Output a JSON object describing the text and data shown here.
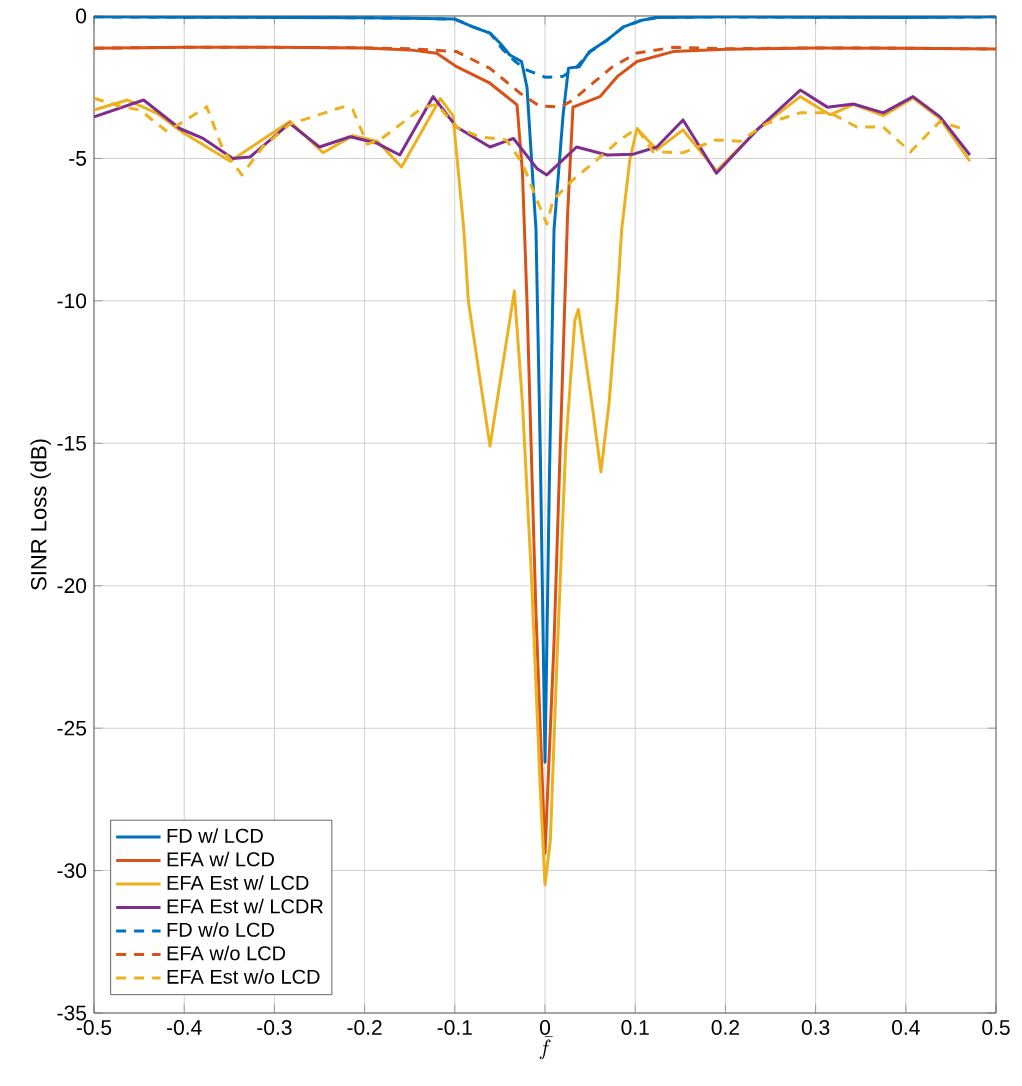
{
  "chart_data": {
    "type": "line",
    "xlabel": "\\bar{f}",
    "ylabel": "SINR Loss (dB)",
    "xlim": [
      -0.5,
      0.5
    ],
    "ylim": [
      -35,
      0
    ],
    "xticks": [
      -0.5,
      -0.4,
      -0.3,
      -0.2,
      -0.1,
      0,
      0.1,
      0.2,
      0.3,
      0.4,
      0.5
    ],
    "yticks": [
      -35,
      -30,
      -25,
      -20,
      -15,
      -10,
      -5,
      0
    ],
    "grid": true,
    "legend": "bottom left",
    "series": [
      {
        "name": "FD w/ LCD",
        "color": "#0072bd",
        "line_style": "solid",
        "x": [
          -0.5,
          -0.4,
          -0.3,
          -0.2,
          -0.15,
          -0.1,
          -0.08,
          -0.061,
          -0.05,
          -0.039,
          -0.026,
          -0.02,
          -0.01,
          -0.005,
          0,
          0.005,
          0.01,
          0.02,
          0.026,
          0.038,
          0.049,
          0.069,
          0.087,
          0.106,
          0.124,
          0.2,
          0.3,
          0.4,
          0.5
        ],
        "values": [
          -0.03,
          -0.04,
          -0.05,
          -0.06,
          -0.08,
          -0.11,
          -0.38,
          -0.6,
          -0.95,
          -1.37,
          -1.6,
          -2.5,
          -7.5,
          -15.7,
          -26.2,
          -16,
          -7.5,
          -3.5,
          -1.83,
          -1.78,
          -1.26,
          -0.84,
          -0.38,
          -0.16,
          -0.05,
          -0.03,
          -0.04,
          -0.05,
          -0.03
        ]
      },
      {
        "name": "EFA w/ LCD",
        "color": "#d95319",
        "line_style": "solid",
        "x": [
          -0.5,
          -0.4,
          -0.3,
          -0.2,
          -0.15,
          -0.12,
          -0.098,
          -0.061,
          -0.031,
          -0.025,
          -0.02,
          -0.01,
          0,
          0.01,
          0.02,
          0.025,
          0.031,
          0.061,
          0.08,
          0.102,
          0.142,
          0.2,
          0.3,
          0.4,
          0.5
        ],
        "values": [
          -1.13,
          -1.1,
          -1.1,
          -1.12,
          -1.19,
          -1.31,
          -1.78,
          -2.36,
          -3.12,
          -5.5,
          -10,
          -21,
          -29.4,
          -22,
          -12,
          -7,
          -3.2,
          -2.83,
          -2.13,
          -1.6,
          -1.25,
          -1.17,
          -1.12,
          -1.13,
          -1.16
        ]
      },
      {
        "name": "EFA Est w/ LCD",
        "color": "#edb120",
        "line_style": "solid",
        "x": [
          -0.5,
          -0.463,
          -0.43,
          -0.401,
          -0.349,
          -0.283,
          -0.246,
          -0.213,
          -0.186,
          -0.159,
          -0.116,
          -0.102,
          -0.09,
          -0.085,
          -0.061,
          -0.034,
          -0.025,
          -0.015,
          -0.005,
          0,
          0.006,
          0.013,
          0.023,
          0.033,
          0.037,
          0.052,
          0.062,
          0.071,
          0.08,
          0.085,
          0.094,
          0.102,
          0.124,
          0.153,
          0.19,
          0.235,
          0.283,
          0.316,
          0.342,
          0.375,
          0.408,
          0.438,
          0.471
        ],
        "values": [
          -3.3,
          -2.95,
          -3.42,
          -4.1,
          -5.1,
          -3.7,
          -4.8,
          -4.2,
          -4.4,
          -5.3,
          -2.9,
          -3.5,
          -7.5,
          -10,
          -15.1,
          -9.65,
          -13.6,
          -19.7,
          -27.3,
          -30.5,
          -28.9,
          -22.8,
          -15.1,
          -10.7,
          -10.3,
          -13.6,
          -16,
          -13.6,
          -10,
          -7.5,
          -5.05,
          -3.95,
          -4.7,
          -4,
          -5.44,
          -4,
          -2.83,
          -3.47,
          -3.1,
          -3.5,
          -2.88,
          -3.6,
          -5.1
        ]
      },
      {
        "name": "EFA Est w/ LCDR",
        "color": "#7e2f8e",
        "line_style": "solid",
        "x": [
          -0.5,
          -0.445,
          -0.405,
          -0.379,
          -0.346,
          -0.327,
          -0.283,
          -0.25,
          -0.216,
          -0.186,
          -0.161,
          -0.124,
          -0.098,
          -0.061,
          -0.035,
          -0.009,
          0.002,
          0.035,
          0.069,
          0.098,
          0.124,
          0.153,
          0.19,
          0.235,
          0.283,
          0.313,
          0.342,
          0.375,
          0.408,
          0.438,
          0.471
        ],
        "values": [
          -3.54,
          -2.95,
          -3.95,
          -4.3,
          -5,
          -4.95,
          -3.77,
          -4.6,
          -4.24,
          -4.47,
          -4.88,
          -2.83,
          -3.9,
          -4.6,
          -4.3,
          -5.35,
          -5.58,
          -4.6,
          -4.88,
          -4.85,
          -4.6,
          -3.65,
          -5.52,
          -4,
          -2.6,
          -3.2,
          -3.09,
          -3.4,
          -2.83,
          -3.54,
          -4.88
        ]
      },
      {
        "name": "FD w/o LCD",
        "color": "#0072bd",
        "line_style": "dashed",
        "x": [
          -0.5,
          -0.4,
          -0.3,
          -0.2,
          -0.15,
          -0.1,
          -0.08,
          -0.061,
          -0.047,
          -0.033,
          -0.02,
          -0.006,
          0,
          0.02,
          0.035,
          0.05,
          0.069,
          0.087,
          0.106,
          0.124,
          0.2,
          0.3,
          0.4,
          0.5
        ],
        "values": [
          -0.03,
          -0.04,
          -0.05,
          -0.06,
          -0.08,
          -0.11,
          -0.38,
          -0.6,
          -1.17,
          -1.6,
          -1.9,
          -2.07,
          -2.15,
          -2.12,
          -1.8,
          -1.26,
          -0.84,
          -0.38,
          -0.16,
          -0.05,
          -0.03,
          -0.04,
          -0.05,
          -0.03
        ]
      },
      {
        "name": "EFA w/o LCD",
        "color": "#d95319",
        "line_style": "dashed",
        "x": [
          -0.5,
          -0.4,
          -0.3,
          -0.2,
          -0.15,
          -0.098,
          -0.061,
          -0.028,
          -0.006,
          0.017,
          0.031,
          0.053,
          0.075,
          0.102,
          0.142,
          0.2,
          0.3,
          0.4,
          0.5
        ],
        "values": [
          -1.13,
          -1.1,
          -1.1,
          -1.12,
          -1.15,
          -1.25,
          -1.84,
          -2.7,
          -3.16,
          -3.2,
          -2.95,
          -2.36,
          -1.78,
          -1.3,
          -1.1,
          -1.15,
          -1.12,
          -1.13,
          -1.16
        ]
      },
      {
        "name": "EFA Est w/o LCD",
        "color": "#edb120",
        "line_style": "dashed",
        "x": [
          -0.5,
          -0.471,
          -0.449,
          -0.419,
          -0.375,
          -0.357,
          -0.336,
          -0.313,
          -0.283,
          -0.246,
          -0.224,
          -0.213,
          -0.197,
          -0.183,
          -0.135,
          -0.12,
          -0.098,
          -0.073,
          -0.043,
          -0.025,
          -0.009,
          0.002,
          0.009,
          0.031,
          0.053,
          0.083,
          0.102,
          0.12,
          0.153,
          0.19,
          0.216,
          0.246,
          0.283,
          0.316,
          0.346,
          0.375,
          0.405,
          0.438,
          0.466
        ],
        "values": [
          -2.89,
          -3.17,
          -3.3,
          -4.06,
          -3.19,
          -4.7,
          -5.58,
          -4.6,
          -3.8,
          -3.42,
          -3.19,
          -3.3,
          -4.5,
          -4.35,
          -3.2,
          -3.1,
          -3.9,
          -4.24,
          -4.35,
          -5.17,
          -6.46,
          -7.3,
          -6.46,
          -5.75,
          -5.17,
          -4.35,
          -3.95,
          -4.77,
          -4.8,
          -4.35,
          -4.4,
          -3.77,
          -3.4,
          -3.4,
          -3.9,
          -3.9,
          -4.77,
          -3.7,
          -4
        ]
      }
    ]
  }
}
